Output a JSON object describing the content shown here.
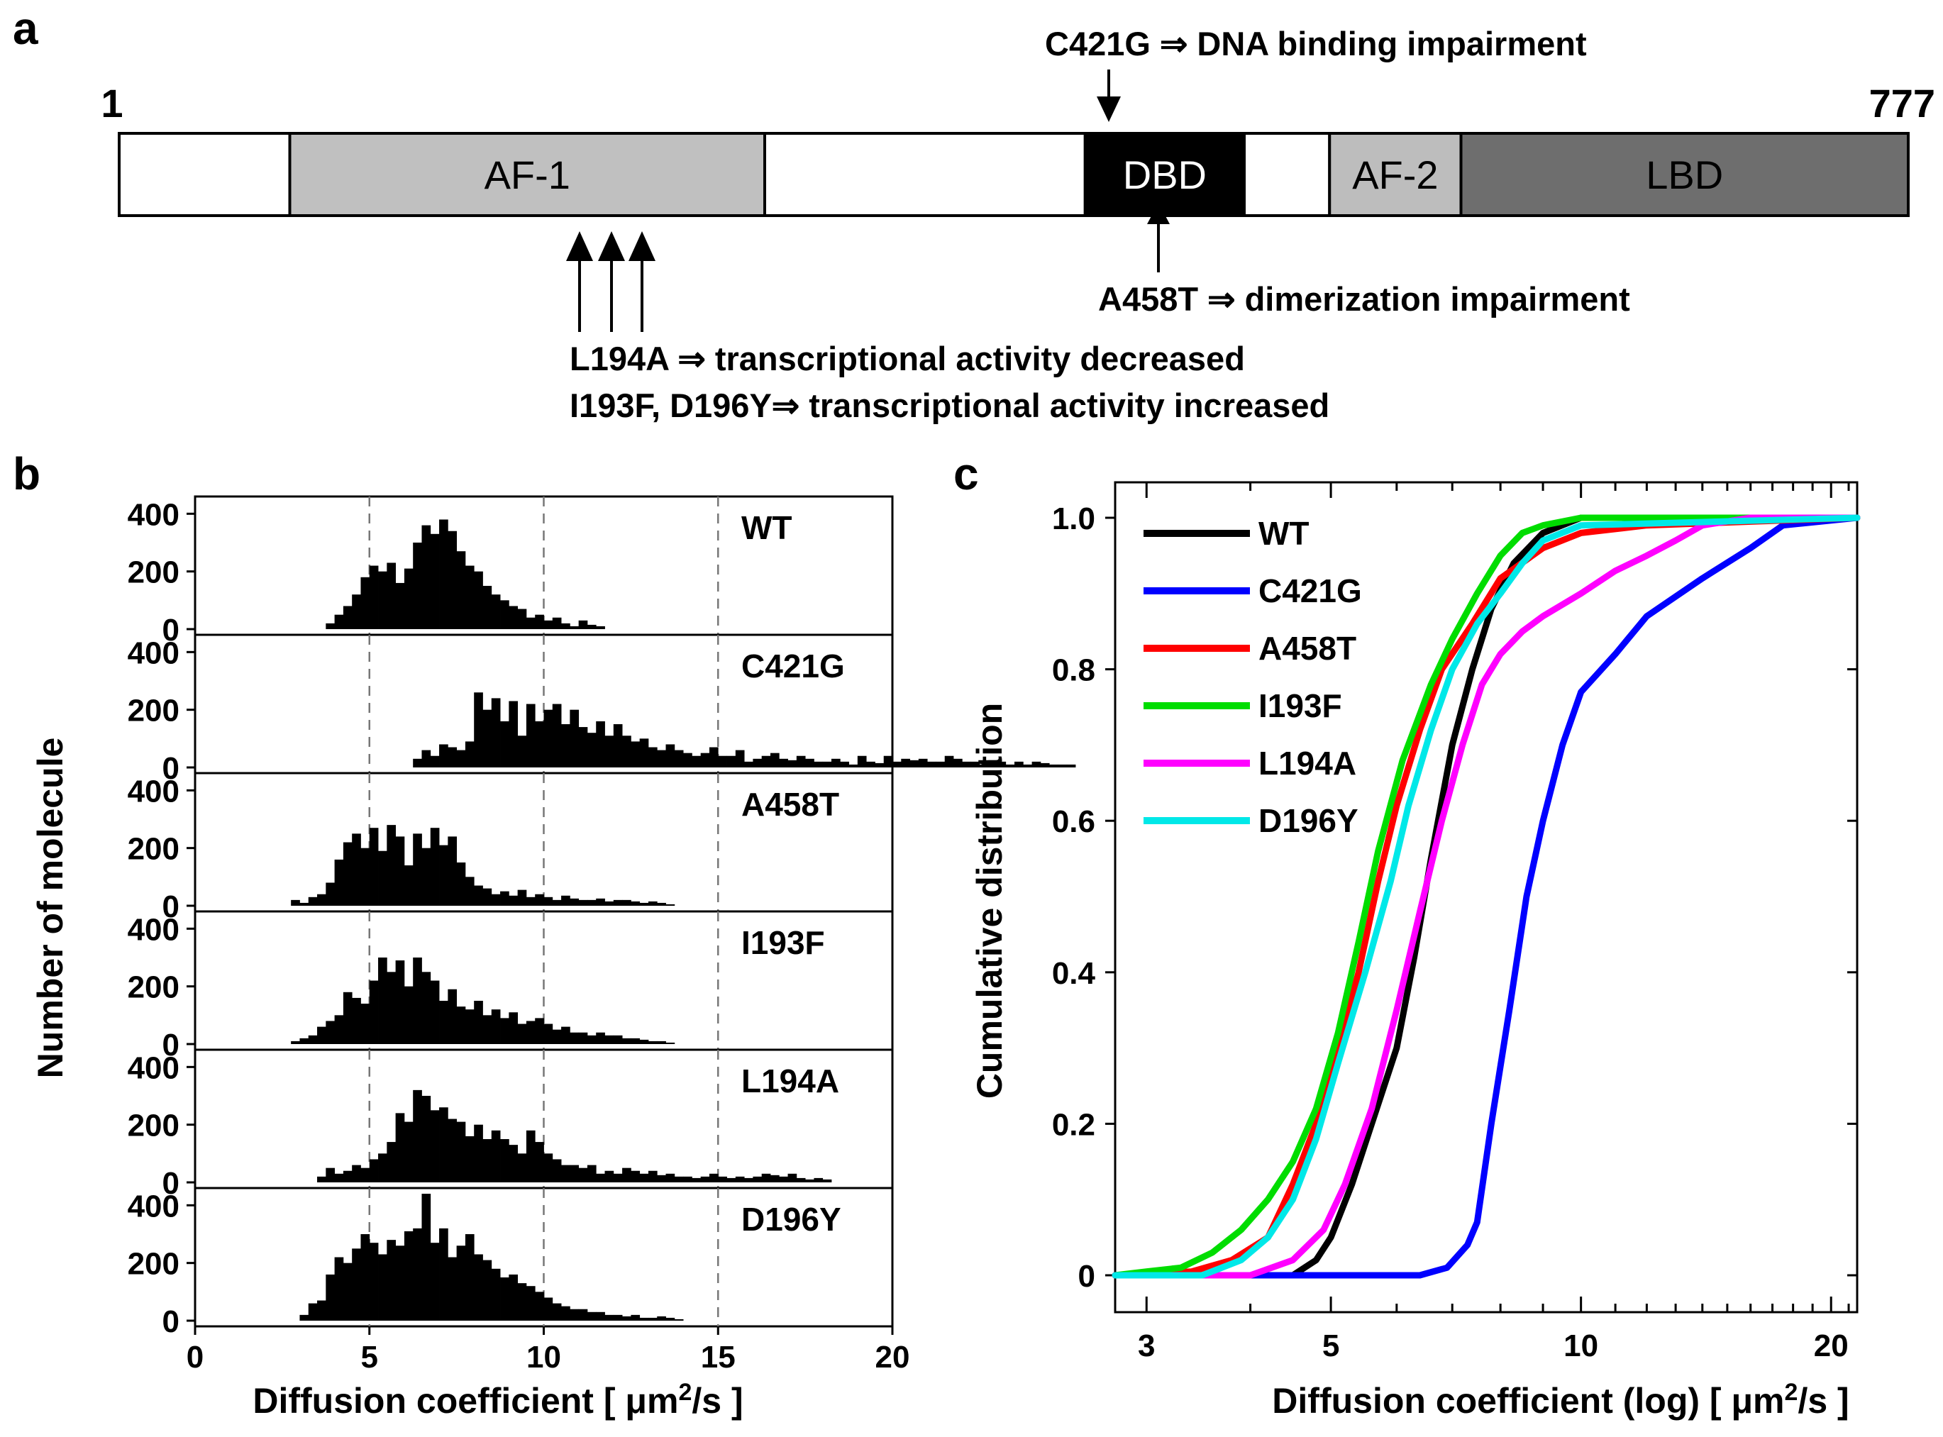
{
  "panel_labels": {
    "a": "a",
    "b": "b",
    "c": "c"
  },
  "colors": {
    "af1": "#c0c0c0",
    "dbd": "#000000",
    "af2": "#bdbdbd",
    "lbd": "#6e6e6e",
    "plain": "#ffffff"
  },
  "panel_a": {
    "start_label": "1",
    "end_label": "777",
    "domains": [
      {
        "name": "",
        "start": 1,
        "end": 75
      },
      {
        "name": "AF-1",
        "start": 75,
        "end": 281
      },
      {
        "name": "",
        "start": 281,
        "end": 420
      },
      {
        "name": "DBD",
        "start": 420,
        "end": 489
      },
      {
        "name": "",
        "start": 489,
        "end": 526
      },
      {
        "name": "AF-2",
        "start": 526,
        "end": 583
      },
      {
        "name": "LBD",
        "start": 583,
        "end": 777
      }
    ],
    "annotations": {
      "c421g": "C421G ⇒ DNA binding impairment",
      "a458t": "A458T ⇒ dimerization impairment",
      "l194a": "L194A ⇒ transcriptional activity decreased",
      "i193f_d196y": "I193F, D196Y⇒ transcriptional activity increased"
    }
  },
  "chart_data": [
    {
      "type": "bar",
      "panel": "b",
      "title": "",
      "xlabel_pre": "Diffusion coefficient [ μm",
      "xlabel_sup": "2",
      "xlabel_post": "/s ]",
      "ylabel": "Number of molecule",
      "xlim": [
        0,
        20
      ],
      "ylim": [
        0,
        450
      ],
      "xticks": [
        0,
        5,
        10,
        15,
        20
      ],
      "yticks": [
        0,
        200,
        400
      ],
      "reference_lines_x": [
        5,
        10,
        15
      ],
      "bin_width": 0.25,
      "series": [
        {
          "name": "WT",
          "start": 3.75,
          "values": [
            20,
            50,
            80,
            120,
            180,
            220,
            200,
            230,
            160,
            210,
            300,
            360,
            330,
            380,
            340,
            270,
            220,
            200,
            150,
            120,
            100,
            80,
            70,
            40,
            50,
            30,
            40,
            20,
            10,
            30,
            15,
            10
          ]
        },
        {
          "name": "C421G",
          "start": 6.25,
          "values": [
            30,
            60,
            40,
            80,
            70,
            60,
            90,
            260,
            200,
            240,
            160,
            230,
            110,
            220,
            160,
            200,
            220,
            150,
            200,
            140,
            120,
            160,
            110,
            150,
            110,
            90,
            100,
            70,
            60,
            80,
            60,
            50,
            40,
            50,
            70,
            40,
            40,
            60,
            20,
            30,
            40,
            50,
            30,
            25,
            40,
            30,
            20,
            20,
            30,
            20,
            10,
            40,
            20,
            15,
            40,
            20,
            30,
            25,
            30,
            20,
            20,
            40,
            30,
            20,
            20,
            10,
            25,
            20,
            10,
            20,
            10,
            20,
            15,
            10,
            10,
            10
          ]
        },
        {
          "name": "A458T",
          "start": 2.75,
          "values": [
            20,
            10,
            30,
            40,
            80,
            160,
            220,
            250,
            200,
            270,
            190,
            280,
            240,
            140,
            250,
            200,
            270,
            210,
            240,
            150,
            100,
            70,
            60,
            40,
            50,
            35,
            55,
            30,
            40,
            30,
            20,
            35,
            25,
            20,
            20,
            25,
            15,
            20,
            20,
            15,
            10,
            15,
            10,
            5
          ]
        },
        {
          "name": "I193F",
          "start": 2.75,
          "values": [
            10,
            20,
            30,
            60,
            80,
            100,
            180,
            160,
            140,
            220,
            300,
            250,
            290,
            200,
            300,
            250,
            220,
            150,
            190,
            130,
            120,
            150,
            100,
            120,
            90,
            110,
            70,
            80,
            90,
            70,
            50,
            60,
            40,
            40,
            30,
            40,
            30,
            30,
            20,
            20,
            15,
            10,
            10,
            5
          ]
        },
        {
          "name": "L194A",
          "start": 3.5,
          "values": [
            20,
            50,
            30,
            40,
            60,
            50,
            80,
            100,
            140,
            240,
            210,
            320,
            300,
            250,
            260,
            220,
            210,
            160,
            200,
            150,
            180,
            150,
            130,
            100,
            180,
            140,
            100,
            80,
            60,
            60,
            50,
            60,
            30,
            40,
            30,
            50,
            40,
            30,
            40,
            25,
            30,
            20,
            20,
            15,
            20,
            30,
            20,
            15,
            20,
            15,
            20,
            30,
            25,
            20,
            30,
            15,
            10,
            15,
            10
          ]
        },
        {
          "name": "D196Y",
          "start": 3.0,
          "values": [
            20,
            60,
            70,
            160,
            220,
            200,
            250,
            300,
            270,
            230,
            280,
            260,
            310,
            320,
            440,
            270,
            320,
            220,
            260,
            300,
            230,
            210,
            180,
            150,
            160,
            130,
            120,
            100,
            80,
            60,
            50,
            40,
            40,
            30,
            30,
            20,
            20,
            15,
            20,
            10,
            10,
            15,
            10,
            5
          ]
        }
      ]
    },
    {
      "type": "line",
      "panel": "c",
      "title": "",
      "xlabel_pre": "Diffusion coefficient (log) [ μm",
      "xlabel_sup": "2",
      "xlabel_post": "/s ]",
      "ylabel": "Cumulative distribution",
      "xscale": "log",
      "xlim": [
        2.75,
        21.5
      ],
      "ylim": [
        0,
        1.0
      ],
      "xticks": [
        3,
        5,
        10,
        20
      ],
      "ytick_labels": [
        "0",
        "0.2",
        "0.4",
        "0.6",
        "0.8",
        "1.0"
      ],
      "yticks": [
        0,
        0.2,
        0.4,
        0.6,
        0.8,
        1.0
      ],
      "legend_position": "top-left",
      "series": [
        {
          "name": "WT",
          "color": "#000000",
          "x": [
            2.75,
            4.5,
            4.8,
            5.0,
            5.3,
            5.6,
            6.0,
            6.3,
            6.6,
            7.0,
            7.4,
            7.8,
            8.3,
            9.0,
            10.0,
            21.5
          ],
          "y": [
            0,
            0,
            0.02,
            0.05,
            0.12,
            0.2,
            0.3,
            0.42,
            0.55,
            0.7,
            0.8,
            0.88,
            0.94,
            0.98,
            1.0,
            1.0
          ]
        },
        {
          "name": "C421G",
          "color": "#0000ff",
          "x": [
            2.75,
            6.4,
            6.9,
            7.3,
            7.5,
            7.8,
            8.2,
            8.6,
            9.0,
            9.5,
            10.0,
            11.0,
            12.0,
            14.0,
            16.0,
            17.5,
            21.5
          ],
          "y": [
            0,
            0,
            0.01,
            0.04,
            0.07,
            0.2,
            0.35,
            0.5,
            0.6,
            0.7,
            0.77,
            0.82,
            0.87,
            0.92,
            0.96,
            0.99,
            1.0
          ]
        },
        {
          "name": "A458T",
          "color": "#ff0000",
          "x": [
            2.75,
            3.4,
            3.8,
            4.2,
            4.5,
            4.8,
            5.1,
            5.4,
            5.7,
            6.0,
            6.4,
            6.8,
            7.4,
            8.0,
            9.0,
            10.0,
            12.0,
            21.5
          ],
          "y": [
            0,
            0.005,
            0.02,
            0.05,
            0.12,
            0.2,
            0.3,
            0.4,
            0.52,
            0.62,
            0.72,
            0.8,
            0.86,
            0.92,
            0.96,
            0.98,
            0.99,
            1.0
          ]
        },
        {
          "name": "I193F",
          "color": "#00dd00",
          "x": [
            2.75,
            3.0,
            3.3,
            3.6,
            3.9,
            4.2,
            4.5,
            4.8,
            5.1,
            5.4,
            5.7,
            6.1,
            6.6,
            7.0,
            7.5,
            8.0,
            8.5,
            9.0,
            10.0,
            21.5
          ],
          "y": [
            0,
            0.005,
            0.01,
            0.03,
            0.06,
            0.1,
            0.15,
            0.22,
            0.32,
            0.44,
            0.56,
            0.68,
            0.78,
            0.84,
            0.9,
            0.95,
            0.98,
            0.99,
            1.0,
            1.0
          ]
        },
        {
          "name": "L194A",
          "color": "#ff00ff",
          "x": [
            2.75,
            4.0,
            4.5,
            4.9,
            5.2,
            5.6,
            6.0,
            6.4,
            6.8,
            7.2,
            7.6,
            8.0,
            8.5,
            9.0,
            10.0,
            11.0,
            12.0,
            13.0,
            14.0,
            16.0,
            21.5
          ],
          "y": [
            0,
            0,
            0.02,
            0.06,
            0.12,
            0.22,
            0.35,
            0.48,
            0.6,
            0.7,
            0.78,
            0.82,
            0.85,
            0.87,
            0.9,
            0.93,
            0.95,
            0.97,
            0.99,
            1.0,
            1.0
          ]
        },
        {
          "name": "D196Y",
          "color": "#00e8e8",
          "x": [
            2.75,
            3.5,
            3.9,
            4.2,
            4.5,
            4.8,
            5.1,
            5.5,
            5.9,
            6.2,
            6.6,
            7.0,
            7.5,
            8.0,
            8.5,
            9.0,
            10.0,
            21.5
          ],
          "y": [
            0,
            0,
            0.02,
            0.05,
            0.1,
            0.18,
            0.28,
            0.4,
            0.52,
            0.62,
            0.72,
            0.8,
            0.86,
            0.9,
            0.94,
            0.97,
            0.99,
            1.0
          ]
        }
      ]
    }
  ]
}
